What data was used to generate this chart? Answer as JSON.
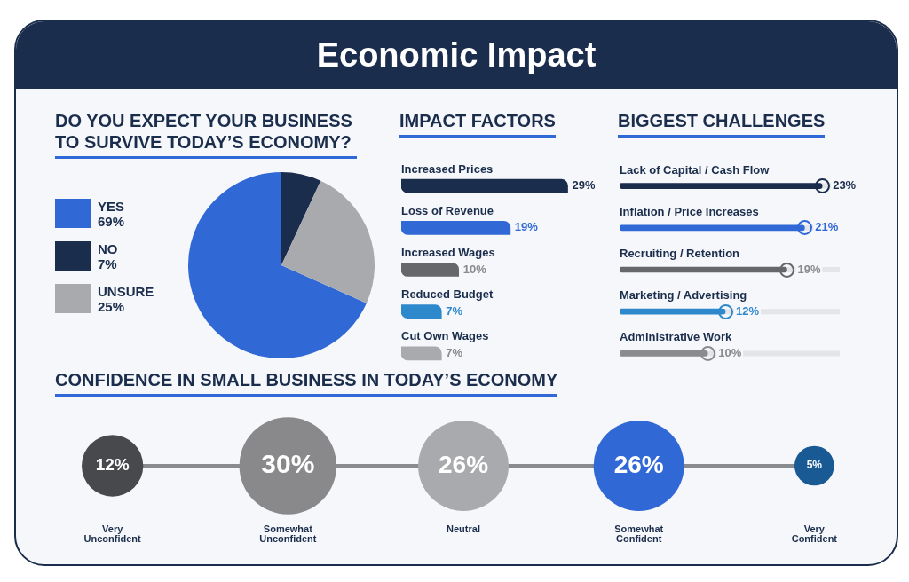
{
  "chart_data": [
    {
      "type": "other",
      "title": "Economic Impact"
    },
    {
      "type": "pie",
      "title": "DO YOU EXPECT YOUR BUSINESS TO SURVIVE TODAY’S ECONOMY?",
      "categories": [
        "YES",
        "NO",
        "UNSURE"
      ],
      "values": [
        69,
        7,
        25
      ],
      "colors": [
        "#3068d6",
        "#1b2d4c",
        "#a9aaae"
      ],
      "value_labels": [
        "69%",
        "7%",
        "25%"
      ],
      "legend": "left"
    },
    {
      "type": "bar",
      "orientation": "horizontal",
      "title": "IMPACT FACTORS",
      "categories": [
        "Increased Prices",
        "Loss of Revenue",
        "Increased Wages",
        "Reduced Budget",
        "Cut Own Wages"
      ],
      "values": [
        29,
        19,
        10,
        7,
        7
      ],
      "colors": [
        "#1b2d4c",
        "#3068d6",
        "#66676b",
        "#2e88cc",
        "#a9aaae"
      ],
      "value_labels": [
        "29%",
        "19%",
        "10%",
        "7%",
        "7%"
      ]
    },
    {
      "type": "bar",
      "orientation": "horizontal",
      "title": "BIGGEST CHALLENGES",
      "categories": [
        "Lack of Capital / Cash Flow",
        "Inflation / Price Increases",
        "Recruiting / Retention",
        "Marketing / Advertising",
        "Administrative Work"
      ],
      "values": [
        23,
        21,
        19,
        12,
        10
      ],
      "colors": [
        "#1b2d4c",
        "#3068d6",
        "#66676b",
        "#2e88cc",
        "#8a8b8f"
      ],
      "value_labels": [
        "23%",
        "21%",
        "19%",
        "12%",
        "10%"
      ],
      "marker": "circle"
    },
    {
      "type": "other",
      "title": "CONFIDENCE IN SMALL BUSINESS IN TODAY’S ECONOMY",
      "categories": [
        "Very Unconfident",
        "Somewhat Unconfident",
        "Neutral",
        "Somewhat Confident",
        "Very Confident"
      ],
      "values": [
        12,
        30,
        26,
        26,
        5
      ],
      "colors": [
        "#48494d",
        "#89898c",
        "#a9aaae",
        "#3068d6",
        "#1a5a94"
      ],
      "value_labels": [
        "12%",
        "30%",
        "26%",
        "26%",
        "5%"
      ]
    }
  ]
}
